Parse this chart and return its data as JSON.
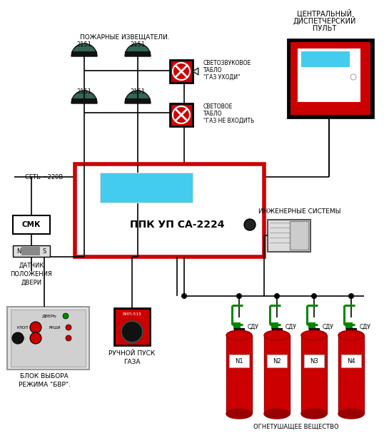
{
  "fire_detectors_label": "ПОЖАРНЫЕ ИЗВЕЩАТЕЛИ.",
  "central_panel_lines": [
    "ЦЕНТРАЛЬНЫЙ",
    "ДИСПЕТЧЕРСКИЙ",
    "ПУЛЬТ"
  ],
  "sound_light_lines": [
    "СВЕТОЗВУКОВОЕ",
    "ТАБЛО",
    "\"ГАЗ УХОДИ\""
  ],
  "light_lines": [
    "СВЕТОВОЕ",
    "ТАБЛО",
    "\"ГАЗ НЕ ВХОДИТЬ"
  ],
  "ppk_label": "ППК УП СА-2224",
  "net_label": "СЕТЬ ~220В",
  "smk_label": "СМК",
  "door_lines": [
    "ДАТЧИК",
    "ПОЛОЖЕНИЯ",
    "ДВЕРИ"
  ],
  "mode_lines": [
    "БЛОК ВЫБОРА",
    "РЕЖИМА \"БВР\"."
  ],
  "manual_lines": [
    "РУЧНОЙ ПУСК",
    "ГАЗА"
  ],
  "eng_label": "ИНЖЕНЕРНЫЕ СИСТЕМЫ",
  "sdu_label": "СДУ",
  "cylinder_labels": [
    "N1",
    "N2",
    "N3",
    "N4"
  ],
  "extinguish_label": "ОГНЕТУШАЩЕЕ ВЕЩЕСТВО",
  "RED": "#cc0000",
  "DRED": "#990000",
  "GREEN": "#008800",
  "BLACK": "#000000",
  "WHITE": "#ffffff",
  "LBLUE": "#44ccee",
  "GRAY": "#aaaaaa",
  "LGRAY": "#dddddd"
}
